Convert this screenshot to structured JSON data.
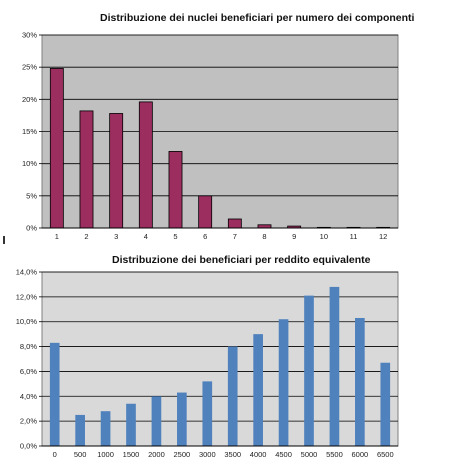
{
  "chart_data": [
    {
      "type": "bar",
      "title": "Distribuzione dei nuclei beneficiari  per numero dei componenti",
      "categories": [
        "1",
        "2",
        "3",
        "4",
        "5",
        "6",
        "7",
        "8",
        "9",
        "10",
        "11",
        "12"
      ],
      "values": [
        24.8,
        18.2,
        17.8,
        19.6,
        11.9,
        5.0,
        1.4,
        0.5,
        0.3,
        0.1,
        0.1,
        0.1
      ],
      "ylim": [
        0,
        30
      ],
      "yticks": [
        "0%",
        "5%",
        "10%",
        "15%",
        "20%",
        "25%",
        "30%"
      ],
      "grid": true,
      "colors": {
        "bar": "#9b2d5f",
        "bar_edge": "#000000",
        "plot_bg": "#c0c0c0"
      }
    },
    {
      "type": "bar",
      "title": "Distribuzione dei beneficiari per reddito equivalente",
      "categories": [
        "0",
        "500",
        "1000",
        "1500",
        "2000",
        "2500",
        "3000",
        "3500",
        "4000",
        "4500",
        "5000",
        "5500",
        "6000",
        "6500"
      ],
      "values": [
        8.3,
        2.5,
        2.8,
        3.4,
        4.0,
        4.3,
        5.2,
        8.0,
        9.0,
        10.2,
        12.1,
        12.8,
        10.3,
        6.7
      ],
      "ylim": [
        0,
        14
      ],
      "yticks": [
        "0,0%",
        "2,0%",
        "4,0%",
        "6,0%",
        "8,0%",
        "10,0%",
        "12,0%",
        "14,0%"
      ],
      "grid": true,
      "colors": {
        "bar": "#4f81bd",
        "plot_bg": "#d9d9d9"
      }
    }
  ]
}
